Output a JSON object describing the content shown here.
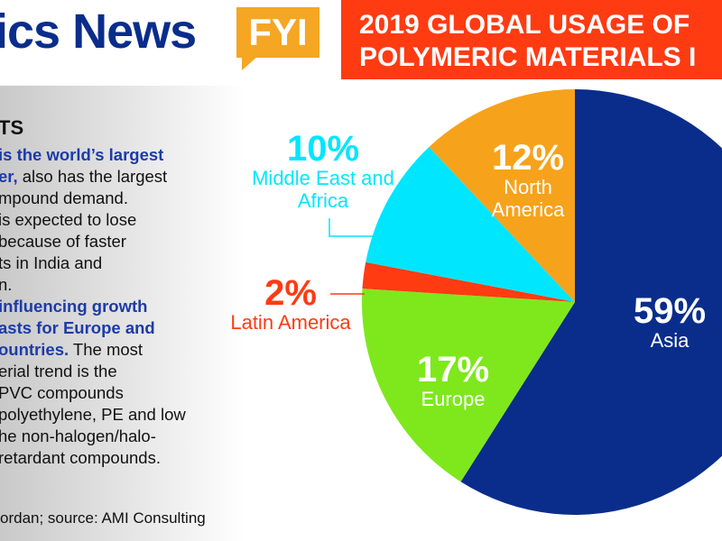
{
  "header": {
    "brand": "ics News",
    "badge": "FYI"
  },
  "sidebar": {
    "heading": "TS",
    "lines": [
      {
        "bold": "is the world’s largest"
      },
      {
        "bold": "er,",
        "text": " also has the largest"
      },
      {
        "text": "mpound demand."
      },
      {
        "text": "is expected to lose"
      },
      {
        "text": "because of faster"
      },
      {
        "text": "ts in India and"
      },
      {
        "text": "n."
      },
      {
        "bold": "influencing growth"
      },
      {
        "bold": "asts for Europe and"
      },
      {
        "bold": "ountries.",
        "text": " The most"
      },
      {
        "text": "erial trend is the"
      },
      {
        "text": "PVC compounds"
      },
      {
        "text": "polyethylene, PE and low"
      },
      {
        "text": "he non-halogen/halo-"
      },
      {
        "text": "retardant compounds."
      }
    ],
    "credit": "ordan; source: AMI Consulting"
  },
  "chart_data": {
    "type": "pie",
    "title": "2019 GLOBAL USAGE OF",
    "subtitle": "POLYMERIC MATERIALS I",
    "categories": [
      "Asia",
      "Europe",
      "Latin America",
      "Middle East and Africa",
      "North America"
    ],
    "values": [
      59,
      17,
      2,
      10,
      12
    ],
    "value_labels": [
      "59%",
      "17%",
      "2%",
      "10%",
      "12%"
    ],
    "colors": [
      "#0a2d8c",
      "#7ee81c",
      "#ff3b12",
      "#00e6ff",
      "#f7a21b"
    ]
  }
}
